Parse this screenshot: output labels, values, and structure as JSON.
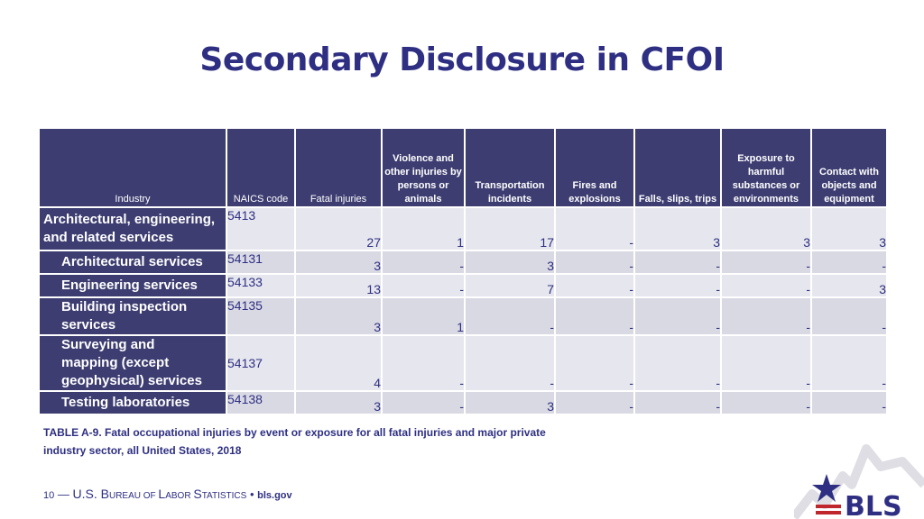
{
  "title": "Secondary Disclosure in CFOI",
  "table": {
    "headers": [
      "Industry",
      "NAICS code",
      "Fatal injuries",
      "Violence and other injuries by persons or animals",
      "Transportation incidents",
      "Fires and explosions",
      "Falls, slips, trips",
      "Exposure to harmful substances or environments",
      "Contact with objects and equipment"
    ],
    "rows": [
      {
        "industry": "Architectural, engineering, and related services",
        "naics": "5413",
        "values": [
          "27",
          "1",
          "17",
          "-",
          "3",
          "3",
          "3"
        ]
      },
      {
        "industry": "Architectural services",
        "naics": "54131",
        "values": [
          "3",
          "-",
          "3",
          "-",
          "-",
          "-",
          "-"
        ]
      },
      {
        "industry": "Engineering services",
        "naics": "54133",
        "values": [
          "13",
          "-",
          "7",
          "-",
          "-",
          "-",
          "3"
        ]
      },
      {
        "industry": "Building inspection services",
        "naics": "54135",
        "values": [
          "3",
          "1",
          "-",
          "-",
          "-",
          "-",
          "-"
        ]
      },
      {
        "industry": "Surveying and mapping (except geophysical) services",
        "naics": "54137",
        "values": [
          "4",
          "-",
          "-",
          "-",
          "-",
          "-",
          "-"
        ]
      },
      {
        "industry": "Testing laboratories",
        "naics": "54138",
        "values": [
          "3",
          "-",
          "3",
          "-",
          "-",
          "-",
          "-"
        ]
      }
    ]
  },
  "caption": "TABLE A-9. Fatal occupational injuries by event or exposure for all fatal injuries and major private industry sector, all United States, 2018",
  "footer": {
    "page_number": "10",
    "dash": "—",
    "org_prefix": "U.S. ",
    "org_b": "B",
    "org_ureau": "UREAU OF ",
    "org_l": "L",
    "org_abor": "ABOR ",
    "org_s": "S",
    "org_tatistics": "TATISTICS",
    "separator": "•",
    "site": "bls.gov"
  },
  "logo": {
    "text": "BLS",
    "colors": {
      "navy": "#2e2f82",
      "red": "#c0272d",
      "gray": "#c8c8d2"
    }
  },
  "colors": {
    "header_bg": "#3d3d72",
    "cell_bg": "#e6e6ee",
    "title": "#2e2f82"
  }
}
